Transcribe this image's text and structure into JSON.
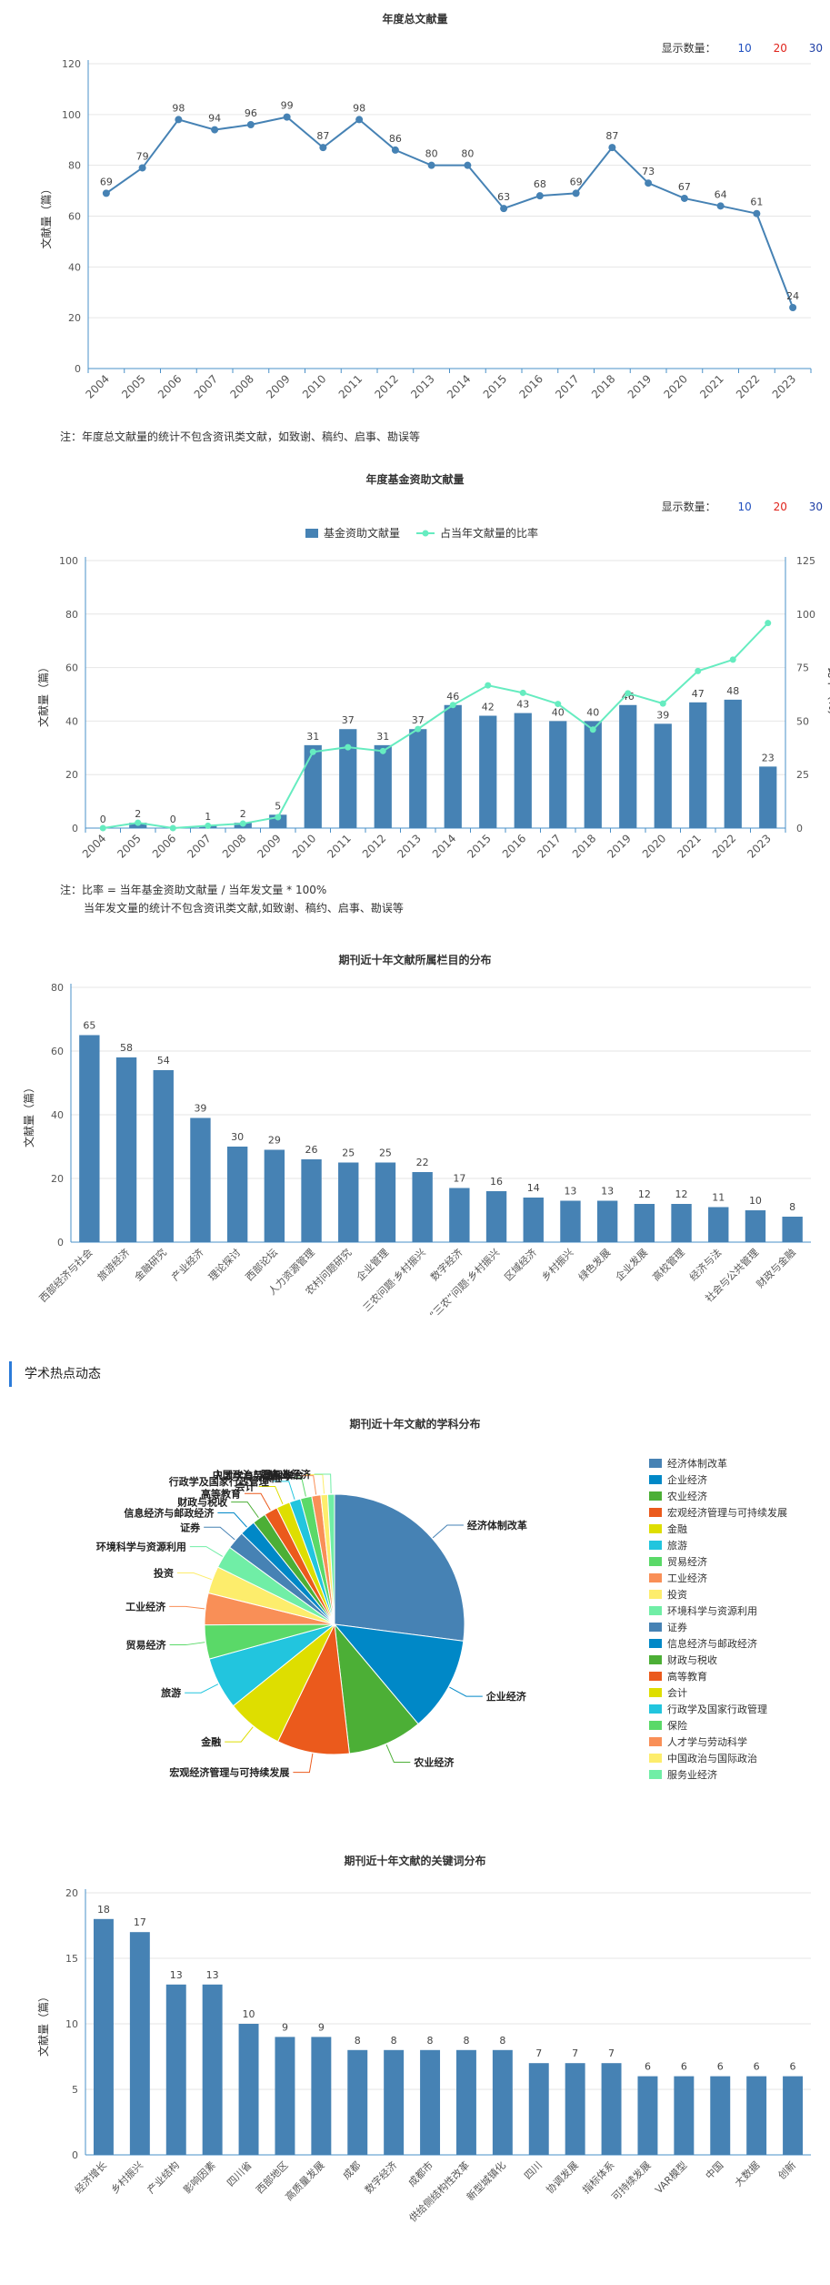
{
  "controls": {
    "label": "显示数量：",
    "options": [
      "10",
      "20",
      "30"
    ]
  },
  "chart_data": [
    {
      "id": "c1",
      "type": "line",
      "title": "年度总文献量",
      "ylabel": "文献量（篇）",
      "ylim": [
        0,
        120
      ],
      "yticks": [
        0,
        20,
        40,
        60,
        80,
        100,
        120
      ],
      "categories": [
        "2004",
        "2005",
        "2006",
        "2007",
        "2008",
        "2009",
        "2010",
        "2011",
        "2012",
        "2013",
        "2014",
        "2015",
        "2016",
        "2017",
        "2018",
        "2019",
        "2020",
        "2021",
        "2022",
        "2023"
      ],
      "values": [
        69,
        79,
        98,
        94,
        96,
        99,
        87,
        98,
        86,
        80,
        80,
        63,
        68,
        69,
        87,
        73,
        67,
        64,
        61,
        24
      ],
      "color": "#4682b4",
      "note": [
        "注：年度总文献量的统计不包含资讯类文献，如致谢、稿约、启事、勘误等"
      ]
    },
    {
      "id": "c2",
      "type": "bar",
      "title": "年度基金资助文献量",
      "ylabel": "文献量（篇）",
      "y2label": "比率（%）",
      "ylim": [
        0,
        100
      ],
      "y2lim": [
        0,
        125
      ],
      "yticks": [
        0,
        20,
        40,
        60,
        80,
        100
      ],
      "y2ticks": [
        0,
        25,
        50,
        75,
        100,
        125
      ],
      "categories": [
        "2004",
        "2005",
        "2006",
        "2007",
        "2008",
        "2009",
        "2010",
        "2011",
        "2012",
        "2013",
        "2014",
        "2015",
        "2016",
        "2017",
        "2018",
        "2019",
        "2020",
        "2021",
        "2022",
        "2023"
      ],
      "series": [
        {
          "name": "基金资助文献量",
          "values": [
            0,
            2,
            0,
            1,
            2,
            5,
            31,
            37,
            31,
            37,
            46,
            42,
            43,
            40,
            40,
            46,
            39,
            47,
            48,
            23
          ],
          "color": "#4682b4"
        },
        {
          "name": "占当年文献量的比率",
          "values": [
            0,
            2.5,
            0,
            1.1,
            2.1,
            5.1,
            35.6,
            37.8,
            36,
            46.3,
            57.5,
            66.7,
            63.2,
            58,
            46,
            63,
            58.2,
            73.4,
            78.7,
            95.8
          ],
          "color": "#66ecc0"
        }
      ],
      "note": [
        "注：比率 = 当年基金资助文献量 / 当年发文量 * 100%",
        "当年发文量的统计不包含资讯类文献,如致谢、稿约、启事、勘误等"
      ]
    },
    {
      "id": "c3",
      "type": "bar",
      "title": "期刊近十年文献所属栏目的分布",
      "ylabel": "文献量（篇）",
      "ylim": [
        0,
        80
      ],
      "yticks": [
        0,
        20,
        40,
        60,
        80
      ],
      "categories": [
        "西部经济与社会",
        "旅游经济",
        "金融研究",
        "产业经济",
        "理论探讨",
        "西部论坛",
        "人力资源管理",
        "农村问题研究",
        "企业管理",
        "三农问题·乡村振兴",
        "数字经济",
        "“三农”问题·乡村振兴",
        "区域经济",
        "乡村振兴",
        "绿色发展",
        "企业发展",
        "高校管理",
        "经济与法",
        "社会与公共管理",
        "财政与金融"
      ],
      "values": [
        65,
        58,
        54,
        39,
        30,
        29,
        26,
        25,
        25,
        22,
        17,
        16,
        14,
        13,
        13,
        12,
        12,
        11,
        10,
        8
      ],
      "color": "#4682b4"
    },
    {
      "id": "c4",
      "type": "pie",
      "title": "期刊近十年文献的学科分布",
      "labels": [
        "经济体制改革",
        "企业经济",
        "农业经济",
        "宏观经济管理与可持续发展",
        "金融",
        "旅游",
        "贸易经济",
        "工业经济",
        "投资",
        "环境科学与资源利用",
        "证券",
        "信息经济与邮政经济",
        "财政与税收",
        "高等教育",
        "会计",
        "行政学及国家行政管理",
        "保险",
        "人才学与劳动科学",
        "中国政治与国际政治",
        "服务业经济"
      ],
      "values": [
        96,
        42,
        33,
        32,
        25,
        23,
        15,
        14,
        12,
        10,
        8,
        7,
        6,
        6,
        6,
        5,
        5,
        4,
        3,
        3
      ],
      "colors": [
        "#4682b4",
        "#0088c7",
        "#4caf36",
        "#eb5a1c",
        "#dede00",
        "#22c5de",
        "#5ad968",
        "#f98f57",
        "#fded6c",
        "#70eea6",
        "#4682b4",
        "#0088c7",
        "#4caf36",
        "#eb5a1c",
        "#dede00",
        "#22c5de",
        "#5ad968",
        "#f98f57",
        "#fded6c",
        "#70eea6"
      ]
    },
    {
      "id": "c5",
      "type": "bar",
      "title": "期刊近十年文献的关键词分布",
      "ylabel": "文献量（篇）",
      "ylim": [
        0,
        20
      ],
      "yticks": [
        0,
        5,
        10,
        15,
        20
      ],
      "categories": [
        "经济增长",
        "乡村振兴",
        "产业结构",
        "影响因素",
        "四川省",
        "西部地区",
        "高质量发展",
        "成都",
        "数字经济",
        "成都市",
        "供给侧结构性改革",
        "新型城镇化",
        "四川",
        "协调发展",
        "指标体系",
        "可持续发展",
        "VAR模型",
        "中国",
        "大数据",
        "创新"
      ],
      "values": [
        18,
        17,
        13,
        13,
        10,
        9,
        9,
        8,
        8,
        8,
        8,
        8,
        7,
        7,
        7,
        6,
        6,
        6,
        6,
        6
      ],
      "color": "#4682b4"
    }
  ],
  "section": {
    "title": "学术热点动态"
  }
}
